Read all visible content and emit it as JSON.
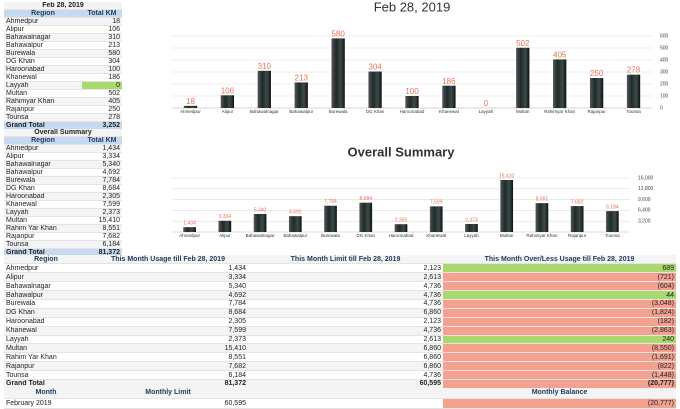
{
  "chart_data": [
    {
      "type": "bar",
      "title": "Feb 28, 2019",
      "categories": [
        "Ahmedpur",
        "Alipur",
        "Bahawalnagar",
        "Bahawalpur",
        "Burewala",
        "DG Khan",
        "Haroonabad",
        "Khanewal",
        "Layyah",
        "Multan",
        "Rahimyar Khan",
        "Rajanpur",
        "Tounsa"
      ],
      "values": [
        18,
        106,
        310,
        213,
        580,
        304,
        100,
        186,
        0,
        502,
        405,
        250,
        278
      ],
      "ylim": [
        0,
        600
      ],
      "yticks": [
        0,
        100,
        200,
        300,
        400,
        500,
        600
      ],
      "grid": true,
      "color": "#1f2a2a",
      "label_color": "#e8735a"
    },
    {
      "type": "bar",
      "title": "Overall Summary",
      "categories": [
        "Ahmedpur",
        "Alipur",
        "Bahawalnagar",
        "Bahawalpur",
        "Burewala",
        "DG Khan",
        "Haroonabad",
        "Khanewal",
        "Layyah",
        "Multan",
        "Rahimyar Khan",
        "Rajanpur",
        "Tounsa"
      ],
      "values": [
        1434,
        3334,
        5340,
        4692,
        7784,
        8684,
        2305,
        7599,
        2373,
        15410,
        8551,
        7682,
        6184
      ],
      "value_labels": [
        "1,434",
        "3,334",
        "5,340",
        "4,692",
        "7,784",
        "8,684",
        "2,305",
        "7,599",
        "2,373",
        "15,410",
        "8,551",
        "7,682",
        "6,184"
      ],
      "ylim": [
        0,
        16000
      ],
      "yticks": [
        {
          "value": 3200,
          "label": "3,200"
        },
        {
          "value": 6400,
          "label": "6,400"
        },
        {
          "value": 9600,
          "label": "9,600"
        },
        {
          "value": 12800,
          "label": "12,800"
        },
        {
          "value": 16000,
          "label": "16,000"
        }
      ],
      "grid": true,
      "color": "#1f2a2a",
      "label_color": "#e8735a"
    }
  ],
  "summary_tables": [
    {
      "title": "Feb 28, 2019",
      "columns": [
        "Region",
        "Total KM"
      ],
      "rows": [
        [
          "Ahmedpur",
          "18"
        ],
        [
          "Alipur",
          "106"
        ],
        [
          "Bahawalnagar",
          "310"
        ],
        [
          "Bahawalpur",
          "213"
        ],
        [
          "Burewala",
          "580"
        ],
        [
          "DG Khan",
          "304"
        ],
        [
          "Haroonabad",
          "100"
        ],
        [
          "Khanewal",
          "186"
        ],
        [
          "Layyah",
          "0"
        ],
        [
          "Multan",
          "502"
        ],
        [
          "Rahimyar Khan",
          "405"
        ],
        [
          "Rajanpur",
          "250"
        ],
        [
          "Tounsa",
          "278"
        ],
        [
          "Grand Total",
          "3,252"
        ]
      ]
    },
    {
      "title": "Overall Summary",
      "columns": [
        "Region",
        "Total KM"
      ],
      "rows": [
        [
          "Ahmedpur",
          "1,434"
        ],
        [
          "Alipur",
          "3,334"
        ],
        [
          "Bahawalnagar",
          "5,340"
        ],
        [
          "Bahawalpur",
          "4,692"
        ],
        [
          "Burewala",
          "7,784"
        ],
        [
          "DG Khan",
          "8,684"
        ],
        [
          "Haroonabad",
          "2,305"
        ],
        [
          "Khanewal",
          "7,599"
        ],
        [
          "Layyah",
          "2,373"
        ],
        [
          "Multan",
          "15,410"
        ],
        [
          "Rahim Yar Khan",
          "8,551"
        ],
        [
          "Rajanpur",
          "7,682"
        ],
        [
          "Tounsa",
          "6,184"
        ],
        [
          "Grand Total",
          "81,372"
        ]
      ]
    }
  ],
  "usage_table": {
    "columns": [
      "Region",
      "This Month Usage till Feb 28, 2019",
      "This Month Limit till Feb 28, 2019",
      "This Month Over/Less Usage till Feb 28, 2019"
    ],
    "rows": [
      [
        "Ahmedpur",
        "1,434",
        "2,123",
        "689"
      ],
      [
        "Alipur",
        "3,334",
        "2,613",
        "(721)"
      ],
      [
        "Bahawalnagar",
        "5,340",
        "4,736",
        "(604)"
      ],
      [
        "Bahawalpur",
        "4,692",
        "4,736",
        "44"
      ],
      [
        "Burewala",
        "7,784",
        "4,736",
        "(3,048)"
      ],
      [
        "DG Khan",
        "8,684",
        "6,860",
        "(1,824)"
      ],
      [
        "Haroonabad",
        "2,305",
        "2,123",
        "(182)"
      ],
      [
        "Khanewal",
        "7,599",
        "4,736",
        "(2,863)"
      ],
      [
        "Layyah",
        "2,373",
        "2,613",
        "240"
      ],
      [
        "Multan",
        "15,410",
        "6,860",
        "(8,550)"
      ],
      [
        "Rahim Yar Khan",
        "8,551",
        "6,860",
        "(1,691)"
      ],
      [
        "Rajanpur",
        "7,682",
        "6,860",
        "(822)"
      ],
      [
        "Tounsa",
        "6,184",
        "4,736",
        "(1,448)"
      ],
      [
        "Grand Total",
        "81,372",
        "60,595",
        "(20,777)"
      ]
    ]
  },
  "month_table": {
    "columns": [
      "Month",
      "Monthly Limit",
      "Monthly Balance"
    ],
    "rows": [
      [
        "February 2019",
        "60,595",
        "(20,777)"
      ]
    ]
  }
}
